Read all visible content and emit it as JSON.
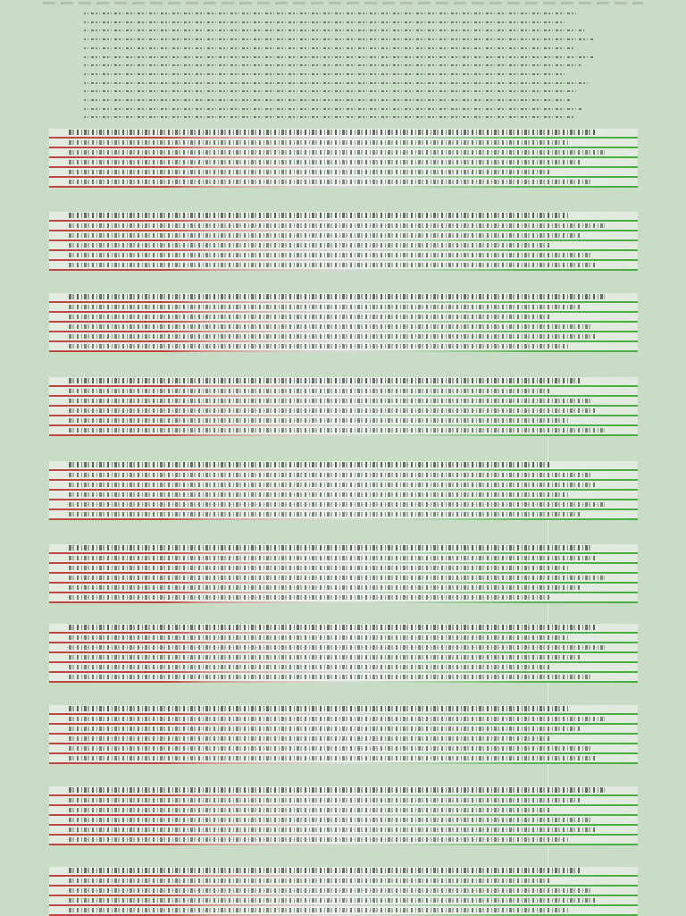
{
  "page": {
    "background": "#c9dcc6",
    "accent_red": "#c0473f",
    "accent_green": "#45ad3f",
    "note": ""
  },
  "intro": {
    "line_count": 13
  },
  "blocks": [
    {
      "rows": 6
    },
    {
      "rows": 6
    },
    {
      "rows": 6
    },
    {
      "rows": 6
    },
    {
      "rows": 6
    },
    {
      "rows": 6
    },
    {
      "rows": 6
    },
    {
      "rows": 6
    },
    {
      "rows": 6
    },
    {
      "rows": 5
    }
  ]
}
